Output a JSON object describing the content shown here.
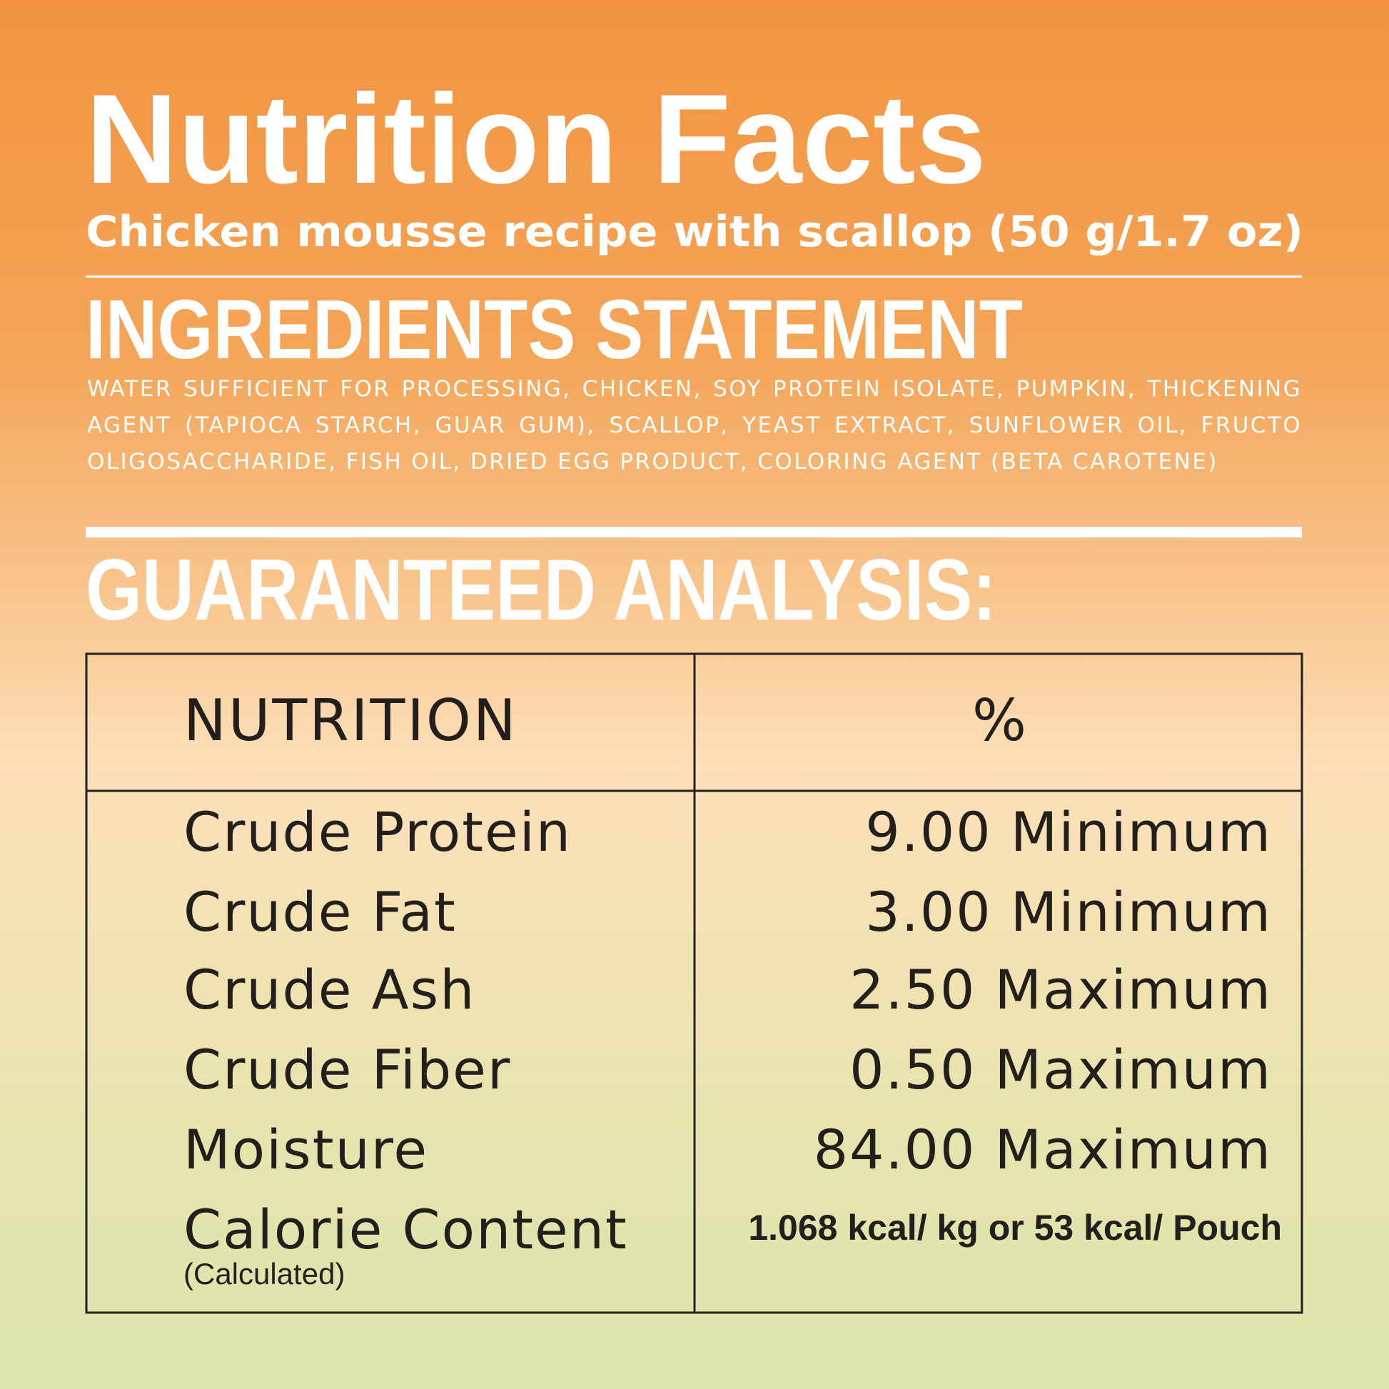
{
  "header": {
    "title": "Nutrition Facts",
    "subtitle": "Chicken mousse recipe with scallop  (50 g/1.7 oz)"
  },
  "ingredients": {
    "heading": "INGREDIENTS STATEMENT",
    "text": "WATER SUFFICIENT FOR PROCESSING, CHICKEN, SOY PROTEIN ISOLATE, PUMPKIN, THICKENING AGENT (TAPIOCA STARCH, GUAR GUM), SCALLOP,  YEAST EXTRACT, SUNFLOWER OIL, FRUCTO OLIGOSACCHARIDE, FISH OIL, DRIED EGG PRODUCT, COLORING AGENT (BETA CAROTENE)"
  },
  "analysis": {
    "heading": "GUARANTEED ANALYSIS:",
    "table": {
      "header": [
        "NUTRITION",
        "%"
      ],
      "rows": [
        {
          "name": "Crude Protein",
          "value": "9.00 Minimum"
        },
        {
          "name": "Crude Fat",
          "value": "3.00 Minimum"
        },
        {
          "name": "Crude Ash",
          "value": "2.50 Maximum"
        },
        {
          "name": "Crude Fiber",
          "value": "0.50 Maximum"
        },
        {
          "name": "Moisture",
          "value": "84.00 Maximum"
        },
        {
          "name": "Calorie Content",
          "note": "(Calculated)",
          "value": "1.068 kcal/ kg or 53 kcal/ Pouch"
        }
      ]
    }
  }
}
